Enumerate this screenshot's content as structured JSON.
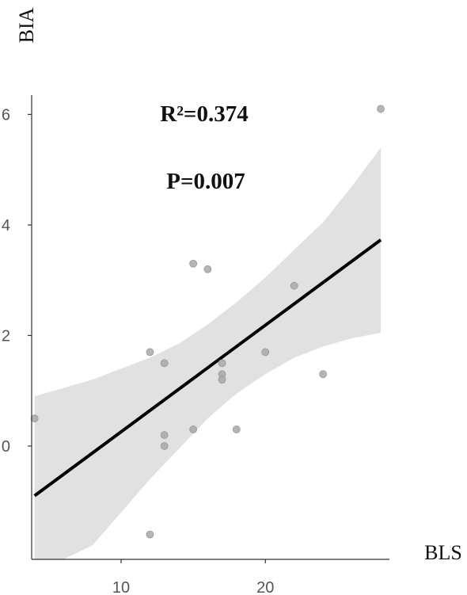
{
  "chart_data": {
    "type": "scatter",
    "title": "",
    "xlabel": "BLS",
    "ylabel": "BIA",
    "xlim": [
      3.8,
      28.6
    ],
    "ylim": [
      -2.05,
      6.35
    ],
    "x_ticks": [
      10,
      20
    ],
    "y_ticks": [
      0,
      2,
      4,
      6
    ],
    "x_tick_labels": [
      "10",
      "20"
    ],
    "y_tick_labels": [
      "0",
      "2",
      "4",
      "6"
    ],
    "grid": false,
    "annotations": [
      "R²=0.374",
      "P=0.007"
    ],
    "points": [
      {
        "x": 4,
        "y": 0.5
      },
      {
        "x": 12,
        "y": 1.7
      },
      {
        "x": 12,
        "y": -1.6
      },
      {
        "x": 13,
        "y": 1.5
      },
      {
        "x": 13,
        "y": 0.2
      },
      {
        "x": 13,
        "y": 0.0
      },
      {
        "x": 15,
        "y": 3.3
      },
      {
        "x": 15,
        "y": 0.3
      },
      {
        "x": 16,
        "y": 3.2
      },
      {
        "x": 17,
        "y": 1.5
      },
      {
        "x": 17,
        "y": 1.3
      },
      {
        "x": 17,
        "y": 1.2
      },
      {
        "x": 18,
        "y": 0.3
      },
      {
        "x": 20,
        "y": 1.7
      },
      {
        "x": 22,
        "y": 2.9
      },
      {
        "x": 24,
        "y": 1.3
      },
      {
        "x": 28,
        "y": 6.1
      }
    ],
    "regression_line": {
      "x": [
        4,
        28
      ],
      "y": [
        -0.9,
        3.73
      ]
    },
    "confidence_band": {
      "x": [
        4,
        6,
        8,
        10,
        12,
        14,
        16,
        18,
        20,
        22,
        24,
        26,
        28
      ],
      "upper": [
        0.9,
        1.05,
        1.2,
        1.4,
        1.6,
        1.85,
        2.2,
        2.6,
        3.05,
        3.55,
        4.05,
        4.7,
        5.4
      ],
      "lower": [
        -2.7,
        -2.4,
        -1.8,
        -1.2,
        -0.6,
        -0.05,
        0.5,
        0.95,
        1.3,
        1.6,
        1.8,
        1.95,
        2.05
      ]
    }
  }
}
